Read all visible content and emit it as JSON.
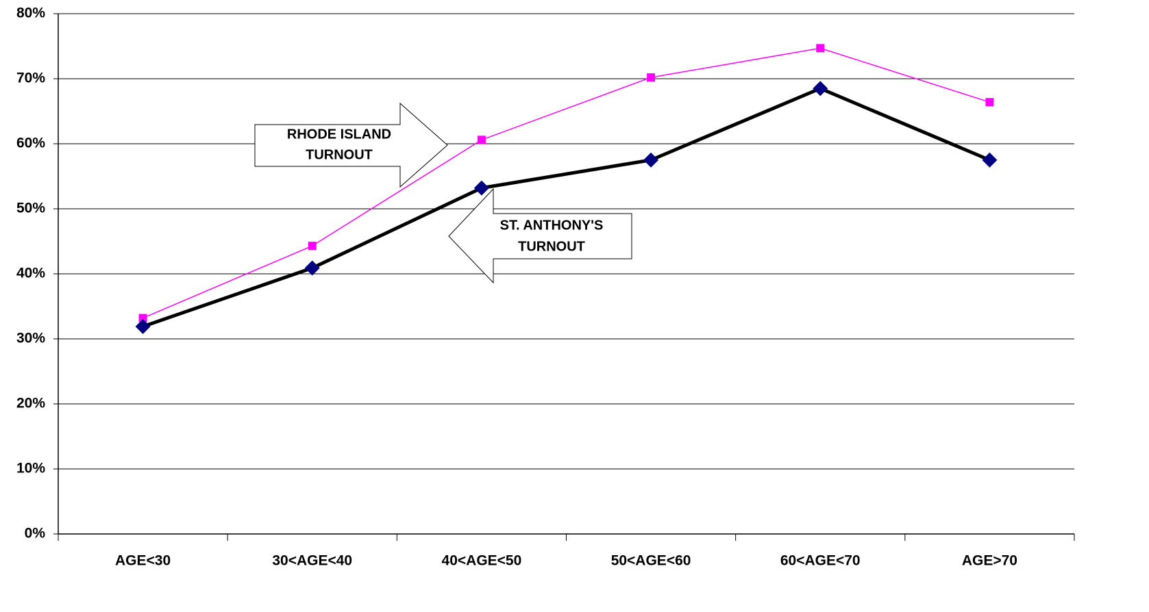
{
  "chart_data": {
    "type": "line",
    "categories": [
      "AGE<30",
      "30<AGE<40",
      "40<AGE<50",
      "50<AGE<60",
      "60<AGE<70",
      "AGE>70"
    ],
    "series": [
      {
        "color": "#ff00ff",
        "marker": "square",
        "marker_color": "#ff00ff",
        "line_width": 1.5,
        "values": [
          33.2,
          44.3,
          60.6,
          70.2,
          74.7,
          66.4
        ]
      },
      {
        "color": "#000000",
        "marker": "diamond",
        "marker_color": "#000080",
        "line_width": 5,
        "values": [
          31.9,
          40.9,
          53.2,
          57.5,
          68.5,
          57.5
        ]
      }
    ],
    "ylim": [
      0,
      80
    ],
    "yticks": [
      {
        "value": 0,
        "label": "0%"
      },
      {
        "value": 10,
        "label": "10%"
      },
      {
        "value": 20,
        "label": "20%"
      },
      {
        "value": 30,
        "label": "30%"
      },
      {
        "value": 40,
        "label": "40%"
      },
      {
        "value": 50,
        "label": "50%"
      },
      {
        "value": 60,
        "label": "60%"
      },
      {
        "value": 70,
        "label": "70%"
      },
      {
        "value": 80,
        "label": "80%"
      }
    ],
    "grid": true,
    "annotations": [
      {
        "lines": [
          "RHODE ISLAND",
          "TURNOUT"
        ]
      },
      {
        "lines": [
          "ST. ANTHONY'S",
          "TURNOUT"
        ]
      }
    ]
  }
}
